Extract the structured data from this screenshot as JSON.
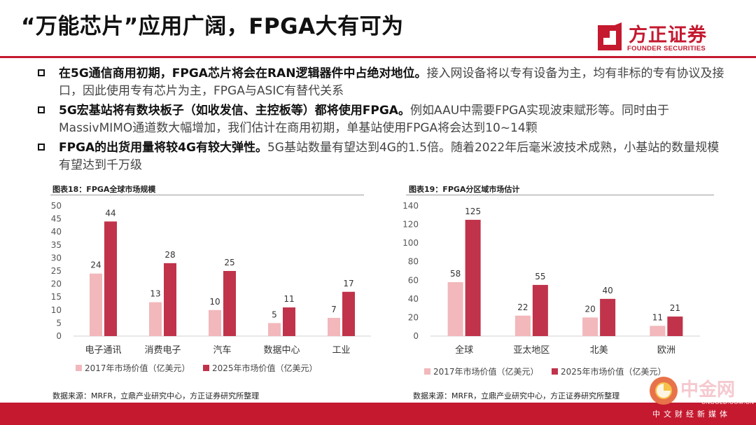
{
  "page": {
    "title": "“万能芯片”应用广阔，FPGA大有可为",
    "logo": {
      "cn": "方正证券",
      "en": "FOUNDER SECURITIES"
    },
    "bullets": [
      {
        "lead": "在5G通信商用初期，FPGA芯片将会在RAN逻辑器件中占绝对地位。",
        "rest": "接入网设备将以专有设备为主，均有非标的专有协议及接口，因此使用专有芯片为主，FPGA与ASIC有替代关系"
      },
      {
        "lead": "5G宏基站将有数块板子（如收发信、主控板等）都将使用FPGA。",
        "rest": "例如AAU中需要FPGA实现波束赋形等。同时由于MassivMIMO通道数大幅增加，我们估计在商用初期，单基站使用FPGA将会达到10~14颗"
      },
      {
        "lead": "FPGA的出货用量将较4G有较大弹性。",
        "rest": "5G基站数量有望达到4G的1.5倍。随着2022年后毫米波技术成熟，小基站的数量规模有望达到千万级"
      }
    ],
    "watermark": {
      "name": "中金网",
      "domain": "CNGOLD.COM.CN",
      "slogan": "中文财经新媒体"
    }
  },
  "chart_data": [
    {
      "type": "bar",
      "title": "图表18：FPGA全球市场规模",
      "categories": [
        "电子通讯",
        "消费电子",
        "汽车",
        "数据中心",
        "工业"
      ],
      "series": [
        {
          "name": "2017年市场价值（亿美元）",
          "color": "#f2b8bb",
          "values": [
            24,
            13,
            10,
            5,
            7
          ]
        },
        {
          "name": "2025年市场价值（亿美元）",
          "color": "#c0334a",
          "values": [
            44,
            28,
            25,
            11,
            17
          ]
        }
      ],
      "ylim": [
        0,
        50
      ],
      "yticks": [
        0,
        5,
        10,
        15,
        20,
        25,
        30,
        35,
        40,
        45,
        50
      ],
      "legend": "bottom",
      "source": "数据来源：MRFR，立鼎产业研究中心，方正证券研究所整理"
    },
    {
      "type": "bar",
      "title": "图表19：FPGA分区域市场估计",
      "categories": [
        "全球",
        "亚太地区",
        "北美",
        "欧洲"
      ],
      "series": [
        {
          "name": "2017年市场价值（亿美元）",
          "color": "#f2b8bb",
          "values": [
            58,
            22,
            20,
            11
          ]
        },
        {
          "name": "2025年市场价值（亿美元）",
          "color": "#c0334a",
          "values": [
            125,
            55,
            40,
            21
          ]
        }
      ],
      "ylim": [
        0,
        140
      ],
      "yticks": [
        0,
        20,
        40,
        60,
        80,
        100,
        120,
        140
      ],
      "legend": "bottom",
      "source": "数据来源：MRFR，立鼎产业研究中心，方正证券研究所整理"
    }
  ]
}
